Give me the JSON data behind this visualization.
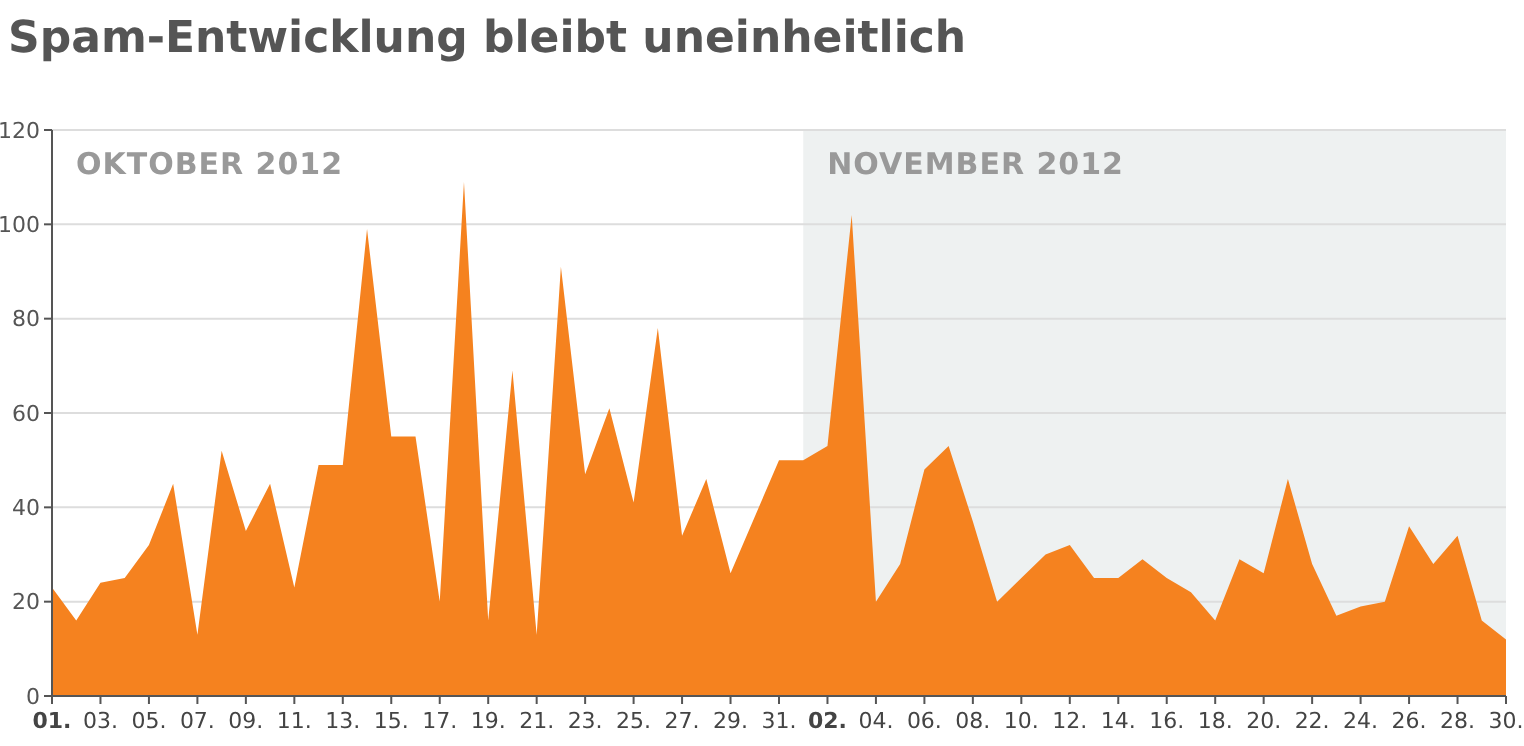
{
  "chart_data": {
    "type": "area",
    "title": "Spam-Entwicklung bleibt uneinheitlich",
    "x": [
      "2012-10-01",
      "2012-10-02",
      "2012-10-03",
      "2012-10-04",
      "2012-10-05",
      "2012-10-06",
      "2012-10-07",
      "2012-10-08",
      "2012-10-09",
      "2012-10-10",
      "2012-10-11",
      "2012-10-12",
      "2012-10-13",
      "2012-10-14",
      "2012-10-15",
      "2012-10-16",
      "2012-10-17",
      "2012-10-18",
      "2012-10-19",
      "2012-10-20",
      "2012-10-21",
      "2012-10-22",
      "2012-10-23",
      "2012-10-24",
      "2012-10-25",
      "2012-10-26",
      "2012-10-27",
      "2012-10-28",
      "2012-10-29",
      "2012-10-30",
      "2012-10-31",
      "2012-11-01",
      "2012-11-02",
      "2012-11-03",
      "2012-11-04",
      "2012-11-05",
      "2012-11-06",
      "2012-11-07",
      "2012-11-08",
      "2012-11-09",
      "2012-11-10",
      "2012-11-11",
      "2012-11-12",
      "2012-11-13",
      "2012-11-14",
      "2012-11-15",
      "2012-11-16",
      "2012-11-17",
      "2012-11-18",
      "2012-11-19",
      "2012-11-20",
      "2012-11-21",
      "2012-11-22",
      "2012-11-23",
      "2012-11-24",
      "2012-11-25",
      "2012-11-26",
      "2012-11-27",
      "2012-11-28",
      "2012-11-29",
      "2012-11-30"
    ],
    "series": [
      {
        "color": "#f5821f",
        "values": [
          23,
          16,
          24,
          25,
          32,
          45,
          13,
          52,
          35,
          45,
          23,
          49,
          49,
          99,
          55,
          55,
          20,
          109,
          16,
          69,
          13,
          91,
          47,
          61,
          41,
          78,
          34,
          46,
          26,
          38,
          50,
          50,
          53,
          102,
          20,
          28,
          48,
          53,
          37,
          20,
          25,
          30,
          32,
          25,
          25,
          29,
          25,
          22,
          16,
          29,
          26,
          46,
          28,
          17,
          19,
          20,
          36,
          28,
          34,
          16,
          12
        ]
      }
    ],
    "xlim": [
      "2012-10-01",
      "2012-11-30"
    ],
    "xticks": [
      {
        "value": "2012-10-01",
        "label": "01."
      },
      {
        "value": "2012-10-03",
        "label": "03."
      },
      {
        "value": "2012-10-05",
        "label": "05."
      },
      {
        "value": "2012-10-07",
        "label": "07."
      },
      {
        "value": "2012-10-09",
        "label": "09."
      },
      {
        "value": "2012-10-11",
        "label": "11."
      },
      {
        "value": "2012-10-13",
        "label": "13."
      },
      {
        "value": "2012-10-15",
        "label": "15."
      },
      {
        "value": "2012-10-17",
        "label": "17."
      },
      {
        "value": "2012-10-19",
        "label": "19."
      },
      {
        "value": "2012-10-21",
        "label": "21."
      },
      {
        "value": "2012-10-23",
        "label": "23."
      },
      {
        "value": "2012-10-25",
        "label": "25."
      },
      {
        "value": "2012-10-27",
        "label": "27."
      },
      {
        "value": "2012-10-29",
        "label": "29."
      },
      {
        "value": "2012-10-31",
        "label": "31."
      },
      {
        "value": "2012-11-02",
        "label": "02."
      },
      {
        "value": "2012-11-04",
        "label": "04."
      },
      {
        "value": "2012-11-06",
        "label": "06."
      },
      {
        "value": "2012-11-08",
        "label": "08."
      },
      {
        "value": "2012-11-10",
        "label": "10."
      },
      {
        "value": "2012-11-12",
        "label": "12."
      },
      {
        "value": "2012-11-14",
        "label": "14."
      },
      {
        "value": "2012-11-16",
        "label": "16."
      },
      {
        "value": "2012-11-18",
        "label": "18."
      },
      {
        "value": "2012-11-20",
        "label": "20."
      },
      {
        "value": "2012-11-22",
        "label": "22."
      },
      {
        "value": "2012-11-24",
        "label": "24."
      },
      {
        "value": "2012-11-26",
        "label": "26."
      },
      {
        "value": "2012-11-28",
        "label": "28."
      },
      {
        "value": "2012-11-30",
        "label": "30."
      }
    ],
    "ylim": [
      0,
      120
    ],
    "yticks": [
      0,
      20,
      40,
      60,
      80,
      100,
      120
    ],
    "grid": "y",
    "bands": [
      {
        "axis": "x",
        "from": "2012-11-01",
        "to": "2012-11-30",
        "label": "NOVEMBER 2012",
        "color": "#eef1f1"
      }
    ],
    "annotations": [
      "OKTOBER 2012"
    ]
  }
}
